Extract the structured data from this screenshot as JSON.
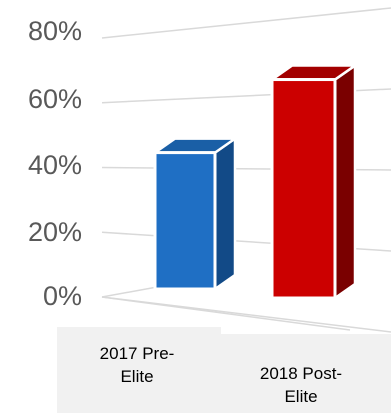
{
  "chart_data": {
    "type": "bar",
    "title": "",
    "xlabel": "",
    "ylabel": "",
    "categories": [
      "2017 Pre-Elite",
      "2018 Post-Elite"
    ],
    "category_lines": [
      [
        "2017 Pre-",
        "Elite"
      ],
      [
        "2018 Post-",
        "Elite"
      ]
    ],
    "values": [
      44,
      68
    ],
    "ylim": [
      0,
      80
    ],
    "yticks": [
      "0%",
      "20%",
      "40%",
      "60%",
      "80%"
    ],
    "grid": true,
    "style": "3d-column",
    "colors": {
      "bar1_front": "#1f6fc4",
      "bar1_side": "#124a87",
      "bar1_top": "#1a5fa6",
      "bar2_front": "#cc0000",
      "bar2_side": "#7a0000",
      "bar2_top": "#a30000",
      "grid": "#d9d9d9",
      "tick_text": "#595959"
    }
  }
}
